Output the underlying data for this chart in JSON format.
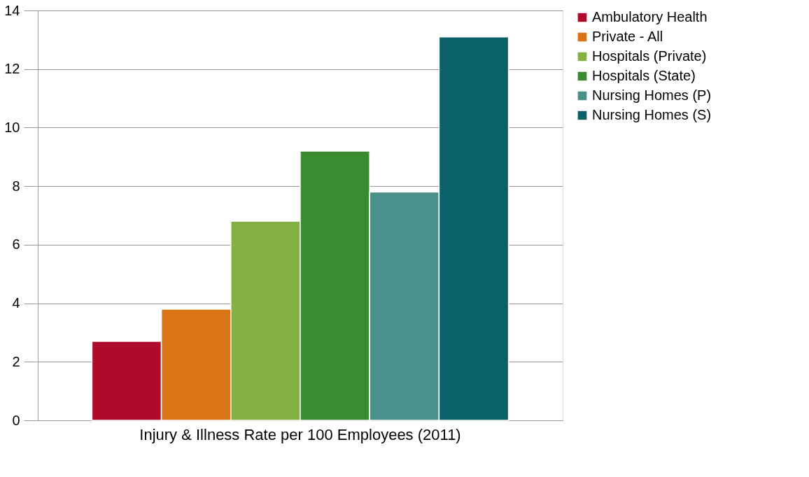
{
  "chart_data": {
    "type": "bar",
    "categories": [
      "Injury & Illness Rate per 100 Employees (2011)"
    ],
    "series": [
      {
        "name": "Ambulatory Health",
        "color": "#ae0a2c",
        "values": [
          2.7
        ]
      },
      {
        "name": "Private - All",
        "color": "#d97516",
        "values": [
          3.8
        ]
      },
      {
        "name": "Hospitals (Private)",
        "color": "#83b243",
        "values": [
          6.8
        ]
      },
      {
        "name": "Hospitals (State)",
        "color": "#3a8a2f",
        "values": [
          9.2
        ]
      },
      {
        "name": "Nursing Homes (P)",
        "color": "#4a918c",
        "values": [
          7.8
        ]
      },
      {
        "name": "Nursing Homes (S)",
        "color": "#0b616a",
        "values": [
          13.1
        ]
      }
    ],
    "ylim": [
      0,
      14
    ],
    "yticks": [
      0,
      2,
      4,
      6,
      8,
      10,
      12,
      14
    ],
    "grid": "y",
    "legend": "right"
  }
}
